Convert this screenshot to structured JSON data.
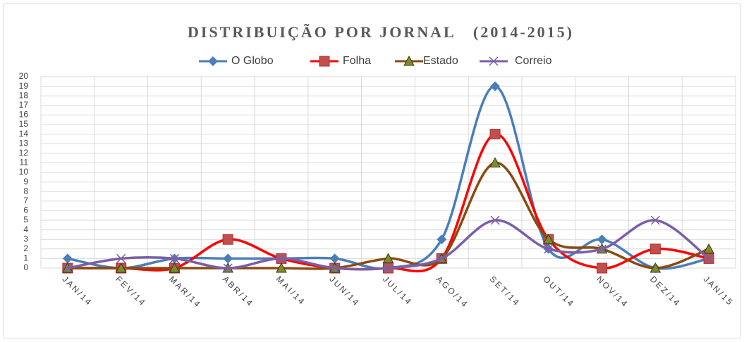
{
  "chart_data": {
    "type": "line",
    "title": "DISTRIBUIÇÃO POR JORNAL   (2014-2015)",
    "categories": [
      "JAN/14",
      "FEV/14",
      "MAR/14",
      "ABR/14",
      "MAI/14",
      "JUN/14",
      "JUL/14",
      "AGO/14",
      "SET/14",
      "OUT/14",
      "NOV/14",
      "DEZ/14",
      "JAN/15"
    ],
    "series": [
      {
        "name": "O Globo",
        "color": "#4a7ebb",
        "marker": "diamond",
        "values": [
          1,
          0,
          1,
          1,
          1,
          1,
          0,
          3,
          19,
          2,
          3,
          0,
          1
        ]
      },
      {
        "name": "Folha",
        "color": "#ff0000",
        "marker": "square",
        "values": [
          0,
          0,
          0,
          3,
          1,
          0,
          0,
          1,
          14,
          3,
          0,
          2,
          1
        ]
      },
      {
        "name": "Estado",
        "color": "#8a4b10",
        "marker": "triangle",
        "values": [
          0,
          0,
          0,
          0,
          0,
          0,
          1,
          1,
          11,
          3,
          2,
          0,
          2
        ]
      },
      {
        "name": "Correio",
        "color": "#7b5ea7",
        "marker": "x",
        "values": [
          0,
          1,
          1,
          0,
          1,
          0,
          0,
          1,
          5,
          2,
          2,
          5,
          1
        ]
      }
    ],
    "ylim": [
      0,
      20
    ],
    "yticks": [
      0,
      1,
      2,
      3,
      4,
      5,
      6,
      7,
      8,
      9,
      10,
      11,
      12,
      13,
      14,
      15,
      16,
      17,
      18,
      19,
      20
    ],
    "grid": true,
    "legend": "top",
    "smooth": true
  }
}
